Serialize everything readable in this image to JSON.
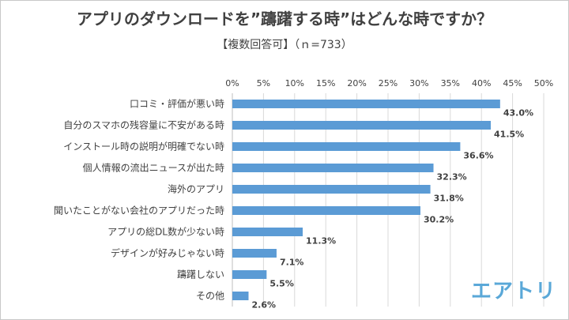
{
  "title": "アプリのダウンロードを”躊躇する時”はどんな時ですか？",
  "subtitle": "【複数回答可】（ｎ=733）",
  "brand": "エアトリ",
  "colors": {
    "bar": "#5b9bd5",
    "grid": "#d9d9d9",
    "text": "#404040",
    "brand": "#5aa8d8"
  },
  "chart_data": {
    "type": "bar",
    "orientation": "horizontal",
    "categories": [
      "口コミ・評価が悪い時",
      "自分のスマホの残容量に不安がある時",
      "インストール時の説明が明確でない時",
      "個人情報の流出ニュースが出た時",
      "海外のアプリ",
      "聞いたことがない会社のアプリだった時",
      "アプリの総DL数が少ない時",
      "デザインが好みじゃない時",
      "躊躇しない",
      "その他"
    ],
    "values": [
      43.0,
      41.5,
      36.6,
      32.3,
      31.8,
      30.2,
      11.3,
      7.1,
      5.5,
      2.6
    ],
    "value_labels": [
      "43.0%",
      "41.5%",
      "36.6%",
      "32.3%",
      "31.8%",
      "30.2%",
      "11.3%",
      "7.1%",
      "5.5%",
      "2.6%"
    ],
    "xlim": [
      0,
      50
    ],
    "ticks": [
      "0%",
      "5%",
      "10%",
      "15%",
      "20%",
      "25%",
      "30%",
      "35%",
      "40%",
      "45%",
      "50%"
    ],
    "grid": true
  }
}
